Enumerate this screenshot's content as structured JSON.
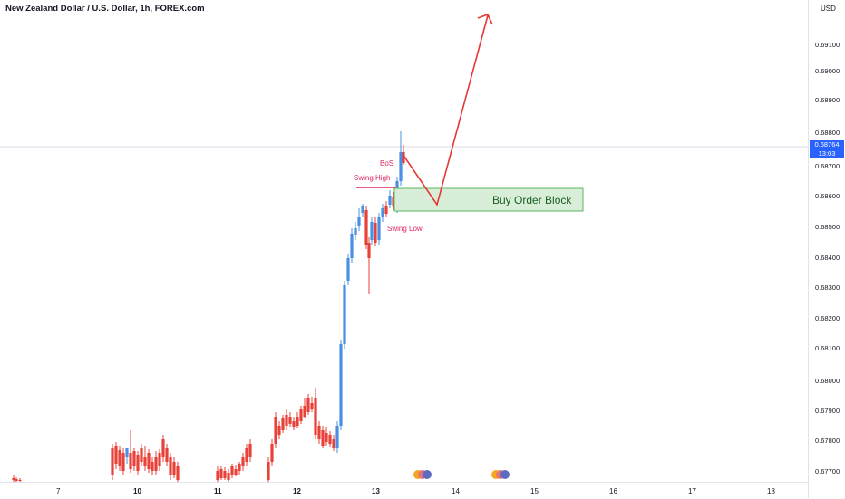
{
  "header": {
    "title": "New Zealand Dollar / U.S. Dollar, 1h, FOREX.com"
  },
  "price_axis": {
    "currency": "USD",
    "ticks": [
      "0.69100",
      "0.69000",
      "0.68900",
      "0.68800",
      "0.68700",
      "0.68600",
      "0.68500",
      "0.68400",
      "0.68300",
      "0.68200",
      "0.68100",
      "0.68000",
      "0.67900",
      "0.67800",
      "0.67700"
    ],
    "current_price": "0.68764",
    "countdown": "13:03"
  },
  "date_axis": {
    "ticks": [
      {
        "label": "7",
        "bold": false
      },
      {
        "label": "10",
        "bold": true
      },
      {
        "label": "11",
        "bold": true
      },
      {
        "label": "12",
        "bold": true
      },
      {
        "label": "13",
        "bold": true
      },
      {
        "label": "14",
        "bold": false
      },
      {
        "label": "15",
        "bold": false
      },
      {
        "label": "16",
        "bold": false
      },
      {
        "label": "17",
        "bold": false
      },
      {
        "label": "18",
        "bold": false
      }
    ]
  },
  "annotations": {
    "bos": "BoS",
    "swing_high": "Swing High",
    "swing_low": "Swing Low",
    "order_block": "Buy Order Block"
  },
  "colors": {
    "up": "#4a90e2",
    "down": "#e8413a",
    "annotation": "#e0245e",
    "arrow": "#e53935",
    "order_block_fill": "#d4ecd4",
    "order_block_border": "#4caf50",
    "order_block_text": "#1b5e20"
  },
  "chart_data": {
    "type": "candlestick",
    "symbol": "NZDUSD",
    "timeframe": "1h",
    "last_price": 0.68764,
    "ylim": [
      0.6766,
      0.6921
    ],
    "order_block": {
      "low": 0.6856,
      "high": 0.6863
    },
    "projection": [
      0.68764,
      0.6857,
      0.6917
    ]
  }
}
